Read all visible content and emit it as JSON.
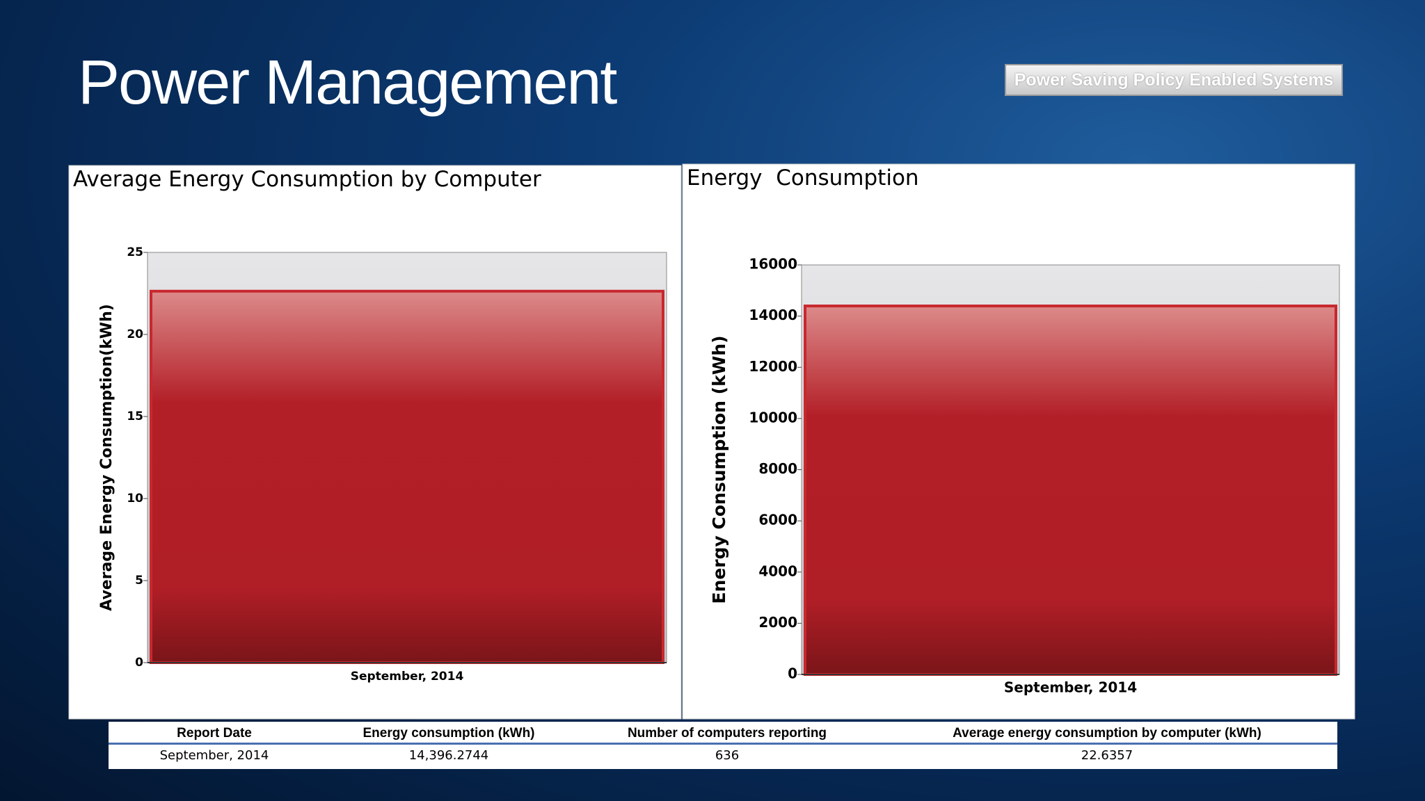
{
  "title": "Power Management",
  "button": "Power Saving Policy Enabled Systems",
  "chart_data": [
    {
      "type": "bar",
      "title": "Average Energy Consumption by Computer",
      "y_label": "Average Energy Consumption(kWh)",
      "categories": [
        "September, 2014"
      ],
      "values": [
        22.6357
      ],
      "color": "#b01e26",
      "ylim": [
        0,
        25
      ],
      "yticks": [
        0,
        5,
        10,
        15,
        20,
        25
      ]
    },
    {
      "type": "bar",
      "title": "Energy  Consumption",
      "y_label": "Energy Consumption (kWh)",
      "categories": [
        "September, 2014"
      ],
      "values": [
        14396.2744
      ],
      "color": "#b01e26",
      "ylim": [
        0,
        16000
      ],
      "yticks": [
        0,
        2000,
        4000,
        6000,
        8000,
        10000,
        12000,
        14000,
        16000
      ]
    }
  ],
  "table": {
    "columns": [
      "Report Date",
      "Energy consumption (kWh)",
      "Number of computers reporting",
      "Average energy consumption by computer (kWh)"
    ],
    "rows": [
      [
        "September, 2014",
        "14,396.2744",
        "636",
        "22.6357"
      ]
    ]
  }
}
